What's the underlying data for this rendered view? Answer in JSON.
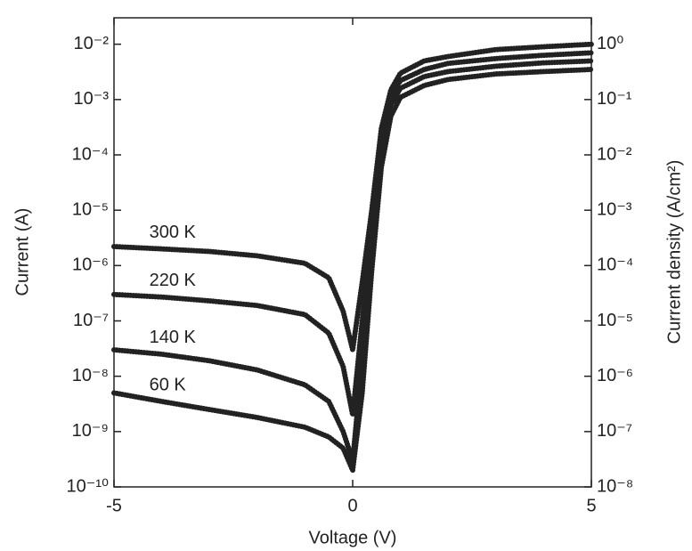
{
  "chart_data": {
    "type": "line",
    "x_label": "Voltage (V)",
    "y_label": "Current (A)",
    "y2_label": "Current density (A/cm²)",
    "x": [
      -5,
      -4,
      -3,
      -2,
      -1,
      -0.5,
      -0.2,
      0,
      0.2,
      0.4,
      0.6,
      0.8,
      1,
      1.5,
      2,
      3,
      4,
      5
    ],
    "series": [
      {
        "name": "300 K",
        "color": "#222222",
        "values": [
          2.2e-06,
          2e-06,
          1.8e-06,
          1.5e-06,
          1.1e-06,
          6e-07,
          1.5e-07,
          3e-08,
          5e-07,
          1e-05,
          0.0003,
          0.0015,
          0.003,
          0.005,
          0.006,
          0.008,
          0.009,
          0.01
        ]
      },
      {
        "name": "220 K",
        "color": "#222222",
        "values": [
          3e-07,
          2.7e-07,
          2.3e-07,
          1.9e-07,
          1.3e-07,
          6e-08,
          1.5e-08,
          2e-09,
          1e-07,
          5e-06,
          0.0002,
          0.0012,
          0.0022,
          0.0035,
          0.0045,
          0.0055,
          0.0063,
          0.007
        ]
      },
      {
        "name": "140 K",
        "color": "#222222",
        "values": [
          3e-08,
          2.5e-08,
          1.9e-08,
          1.3e-08,
          7e-09,
          3.5e-09,
          1e-09,
          3e-10,
          2e-08,
          2e-06,
          0.0001,
          0.0008,
          0.0016,
          0.0026,
          0.0032,
          0.004,
          0.0046,
          0.005
        ]
      },
      {
        "name": "60 K",
        "color": "#222222",
        "values": [
          5e-09,
          3.5e-09,
          2.5e-09,
          1.8e-09,
          1.2e-09,
          8e-10,
          5e-10,
          2e-10,
          5e-09,
          8e-07,
          6e-05,
          0.0005,
          0.0011,
          0.0018,
          0.0023,
          0.0029,
          0.0032,
          0.0035
        ]
      }
    ],
    "xlim": [
      -5,
      5
    ],
    "xticks": [
      -5,
      0,
      5
    ],
    "ylim": [
      1e-10,
      0.03
    ],
    "yscale": "log",
    "yticks": [
      {
        "value": 1e-10,
        "label": "10⁻¹⁰"
      },
      {
        "value": 1e-09,
        "label": "10⁻⁹"
      },
      {
        "value": 1e-08,
        "label": "10⁻⁸"
      },
      {
        "value": 1e-07,
        "label": "10⁻⁷"
      },
      {
        "value": 1e-06,
        "label": "10⁻⁶"
      },
      {
        "value": 1e-05,
        "label": "10⁻⁵"
      },
      {
        "value": 0.0001,
        "label": "10⁻⁴"
      },
      {
        "value": 0.001,
        "label": "10⁻³"
      },
      {
        "value": 0.01,
        "label": "10⁻²"
      }
    ],
    "y2lim": [
      1e-08,
      3
    ],
    "y2ticks": [
      {
        "value": 1e-08,
        "label": "10⁻⁸"
      },
      {
        "value": 1e-07,
        "label": "10⁻⁷"
      },
      {
        "value": 1e-06,
        "label": "10⁻⁶"
      },
      {
        "value": 1e-05,
        "label": "10⁻⁵"
      },
      {
        "value": 0.0001,
        "label": "10⁻⁴"
      },
      {
        "value": 0.001,
        "label": "10⁻³"
      },
      {
        "value": 0.01,
        "label": "10⁻²"
      },
      {
        "value": 0.1,
        "label": "10⁻¹"
      },
      {
        "value": 1,
        "label": "10⁰"
      }
    ],
    "grid": false
  }
}
